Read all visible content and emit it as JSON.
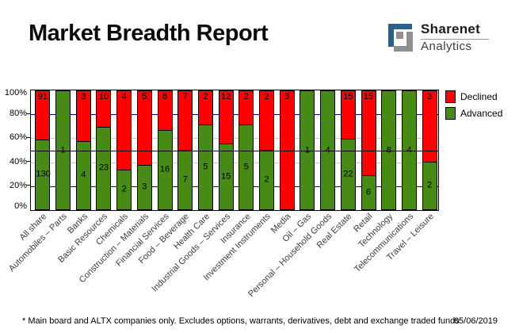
{
  "header": {
    "title": "Market Breadth Report",
    "brand": {
      "name": "Sharenet",
      "sub": "Analytics",
      "icon": "sharenet-s-icon",
      "icon_blue": "#2d5e8c",
      "icon_gray": "#8e9093"
    }
  },
  "chart_data": {
    "type": "bar",
    "stacked": true,
    "stack_mode": "percent",
    "categories": [
      "All share",
      "Automobiles – Parts",
      "Banks",
      "Basic Resources",
      "Chemicals",
      "Construction – Materials",
      "Financial Services",
      "Food – Beverage",
      "Health Care",
      "Industrial Goods – Services",
      "Insurance",
      "Investment Instruments",
      "Media",
      "Oil – Gas",
      "Personal – Household Goods",
      "Real Estate",
      "Retail",
      "Technology",
      "Telecommunications",
      "Travel – Leisure"
    ],
    "series": [
      {
        "name": "Declined",
        "color": "#ff0000",
        "values": [
          91,
          0,
          3,
          10,
          4,
          5,
          8,
          7,
          2,
          12,
          2,
          2,
          3,
          0,
          0,
          15,
          15,
          0,
          0,
          3
        ]
      },
      {
        "name": "Advanced",
        "color": "#478a16",
        "values": [
          130,
          1,
          4,
          23,
          2,
          3,
          16,
          7,
          5,
          15,
          5,
          2,
          0,
          1,
          4,
          22,
          6,
          8,
          4,
          2
        ]
      }
    ],
    "y_ticks": [
      "100%",
      "80%",
      "60%",
      "40%",
      "20%",
      "0%"
    ],
    "ylim": [
      0,
      100
    ],
    "reference_line_pct": 50,
    "gridlines": [
      {
        "pct": 80,
        "color": "#000080"
      },
      {
        "pct": 60,
        "color": "#c8c8c8"
      },
      {
        "pct": 40,
        "color": "#c8c8c8"
      },
      {
        "pct": 20,
        "color": "#000080"
      }
    ],
    "legend_position": "top-right",
    "legend": [
      "Declined",
      "Advanced"
    ]
  },
  "footer": {
    "note": "* Main board and ALTX companies only. Excludes options, warrants, derivatives, debt and exchange traded funds",
    "date": "05/06/2019"
  }
}
